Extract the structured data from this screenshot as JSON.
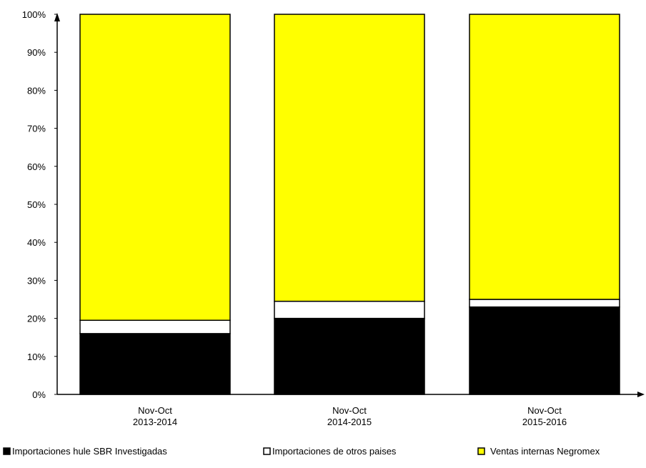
{
  "chart_data": {
    "type": "bar",
    "stacked": true,
    "categories": [
      [
        "Nov-Oct",
        "2013-2014"
      ],
      [
        "Nov-Oct",
        "2014-2015"
      ],
      [
        "Nov-Oct",
        "2015-2016"
      ]
    ],
    "series": [
      {
        "name": "Importaciones hule SBR Investigadas",
        "color": "#000000",
        "values": [
          16,
          20,
          23
        ]
      },
      {
        "name": "Importaciones de otros paises",
        "color": "#ffffff",
        "values": [
          3.5,
          4.5,
          2
        ]
      },
      {
        "name": "Ventas internas Negromex",
        "color": "#ffff00",
        "values": [
          80.5,
          75.5,
          75
        ]
      }
    ],
    "y_ticks": [
      "0%",
      "10%",
      "20%",
      "30%",
      "40%",
      "50%",
      "60%",
      "70%",
      "80%",
      "90%",
      "100%"
    ],
    "ylim": [
      0,
      100
    ],
    "grid": false,
    "legend_position": "bottom"
  }
}
